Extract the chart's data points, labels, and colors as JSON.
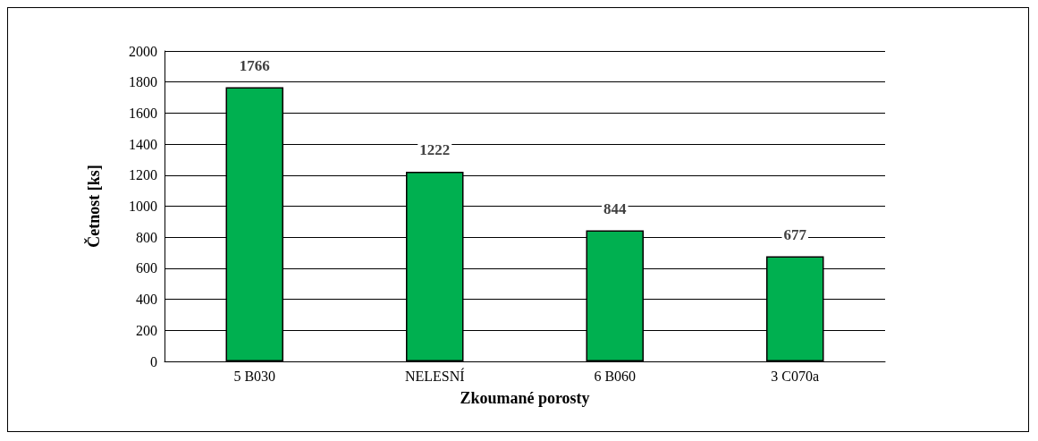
{
  "chart_data": {
    "type": "bar",
    "xlabel": "Zkoumané porosty",
    "ylabel": "Četnost [ks]",
    "categories": [
      "5 B030",
      "NELESNÍ",
      "6 B060",
      "3 C070a"
    ],
    "values": [
      1766,
      1222,
      844,
      677
    ],
    "color": "#00b050",
    "ylim": [
      0,
      2000
    ],
    "yticks": [
      0,
      200,
      400,
      600,
      800,
      1000,
      1200,
      1400,
      1600,
      1800,
      2000
    ],
    "grid": "y",
    "data_labels": true
  }
}
